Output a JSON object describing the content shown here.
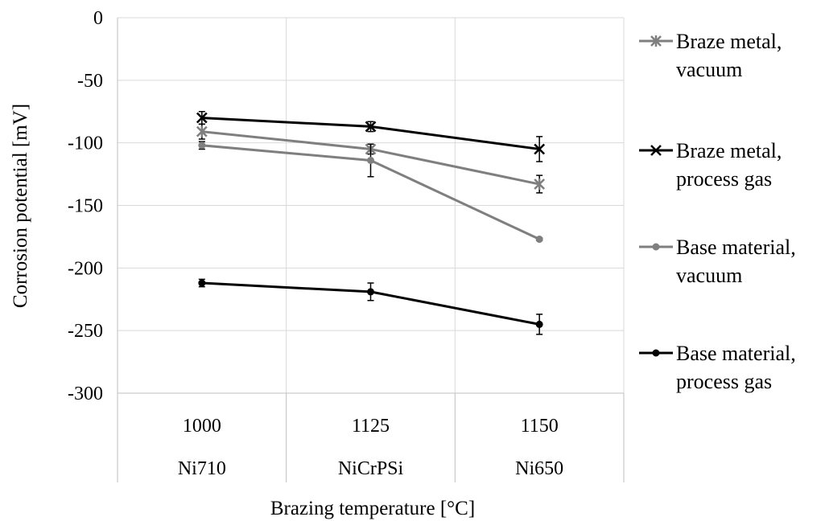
{
  "chart_data": {
    "type": "line",
    "title": "",
    "xlabel": "Brazing temperature [°C]",
    "ylabel": "Corrosion potential [mV]",
    "ylim": [
      -300,
      0
    ],
    "yticks": [
      0,
      -50,
      -100,
      -150,
      -200,
      -250,
      -300
    ],
    "categories": [
      {
        "temperature": "1000",
        "alloy": "Ni710"
      },
      {
        "temperature": "1125",
        "alloy": "NiCrPSi"
      },
      {
        "temperature": "1150",
        "alloy": "Ni650"
      }
    ],
    "grid": true,
    "legend_position": "right",
    "series": [
      {
        "name_lines": [
          "Braze metal,",
          "vacuum"
        ],
        "color": "#7f7f7f",
        "marker": "asterisk",
        "values": [
          -91,
          -105,
          -133
        ],
        "errors": [
          6,
          4,
          7
        ]
      },
      {
        "name_lines": [
          "Braze metal,",
          "process gas"
        ],
        "color": "#000000",
        "marker": "x",
        "values": [
          -80,
          -87,
          -105
        ],
        "errors": [
          5,
          4,
          10
        ]
      },
      {
        "name_lines": [
          "Base material,",
          "vacuum"
        ],
        "color": "#7f7f7f",
        "marker": "dot",
        "values": [
          -102,
          -114,
          -177
        ],
        "errors": [
          3,
          13,
          1
        ]
      },
      {
        "name_lines": [
          "Base material,",
          "process gas"
        ],
        "color": "#000000",
        "marker": "dot",
        "values": [
          -212,
          -219,
          -245
        ],
        "errors": [
          3,
          7,
          8
        ]
      }
    ]
  }
}
